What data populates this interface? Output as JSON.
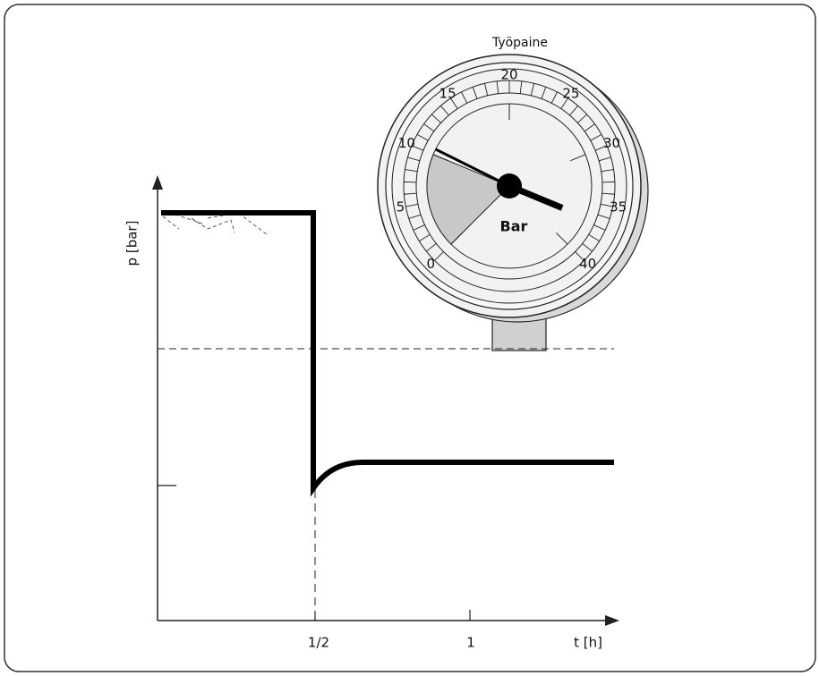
{
  "gauge": {
    "title": "Työpaine",
    "unit": "Bar",
    "scale_labels": [
      "0",
      "5",
      "10",
      "15",
      "20",
      "25",
      "30",
      "35",
      "40"
    ]
  },
  "graph": {
    "y_axis_label": "p [bar]",
    "x_axis_label": "t [h]",
    "x_tick_labels": [
      "1/2",
      "1"
    ]
  }
}
